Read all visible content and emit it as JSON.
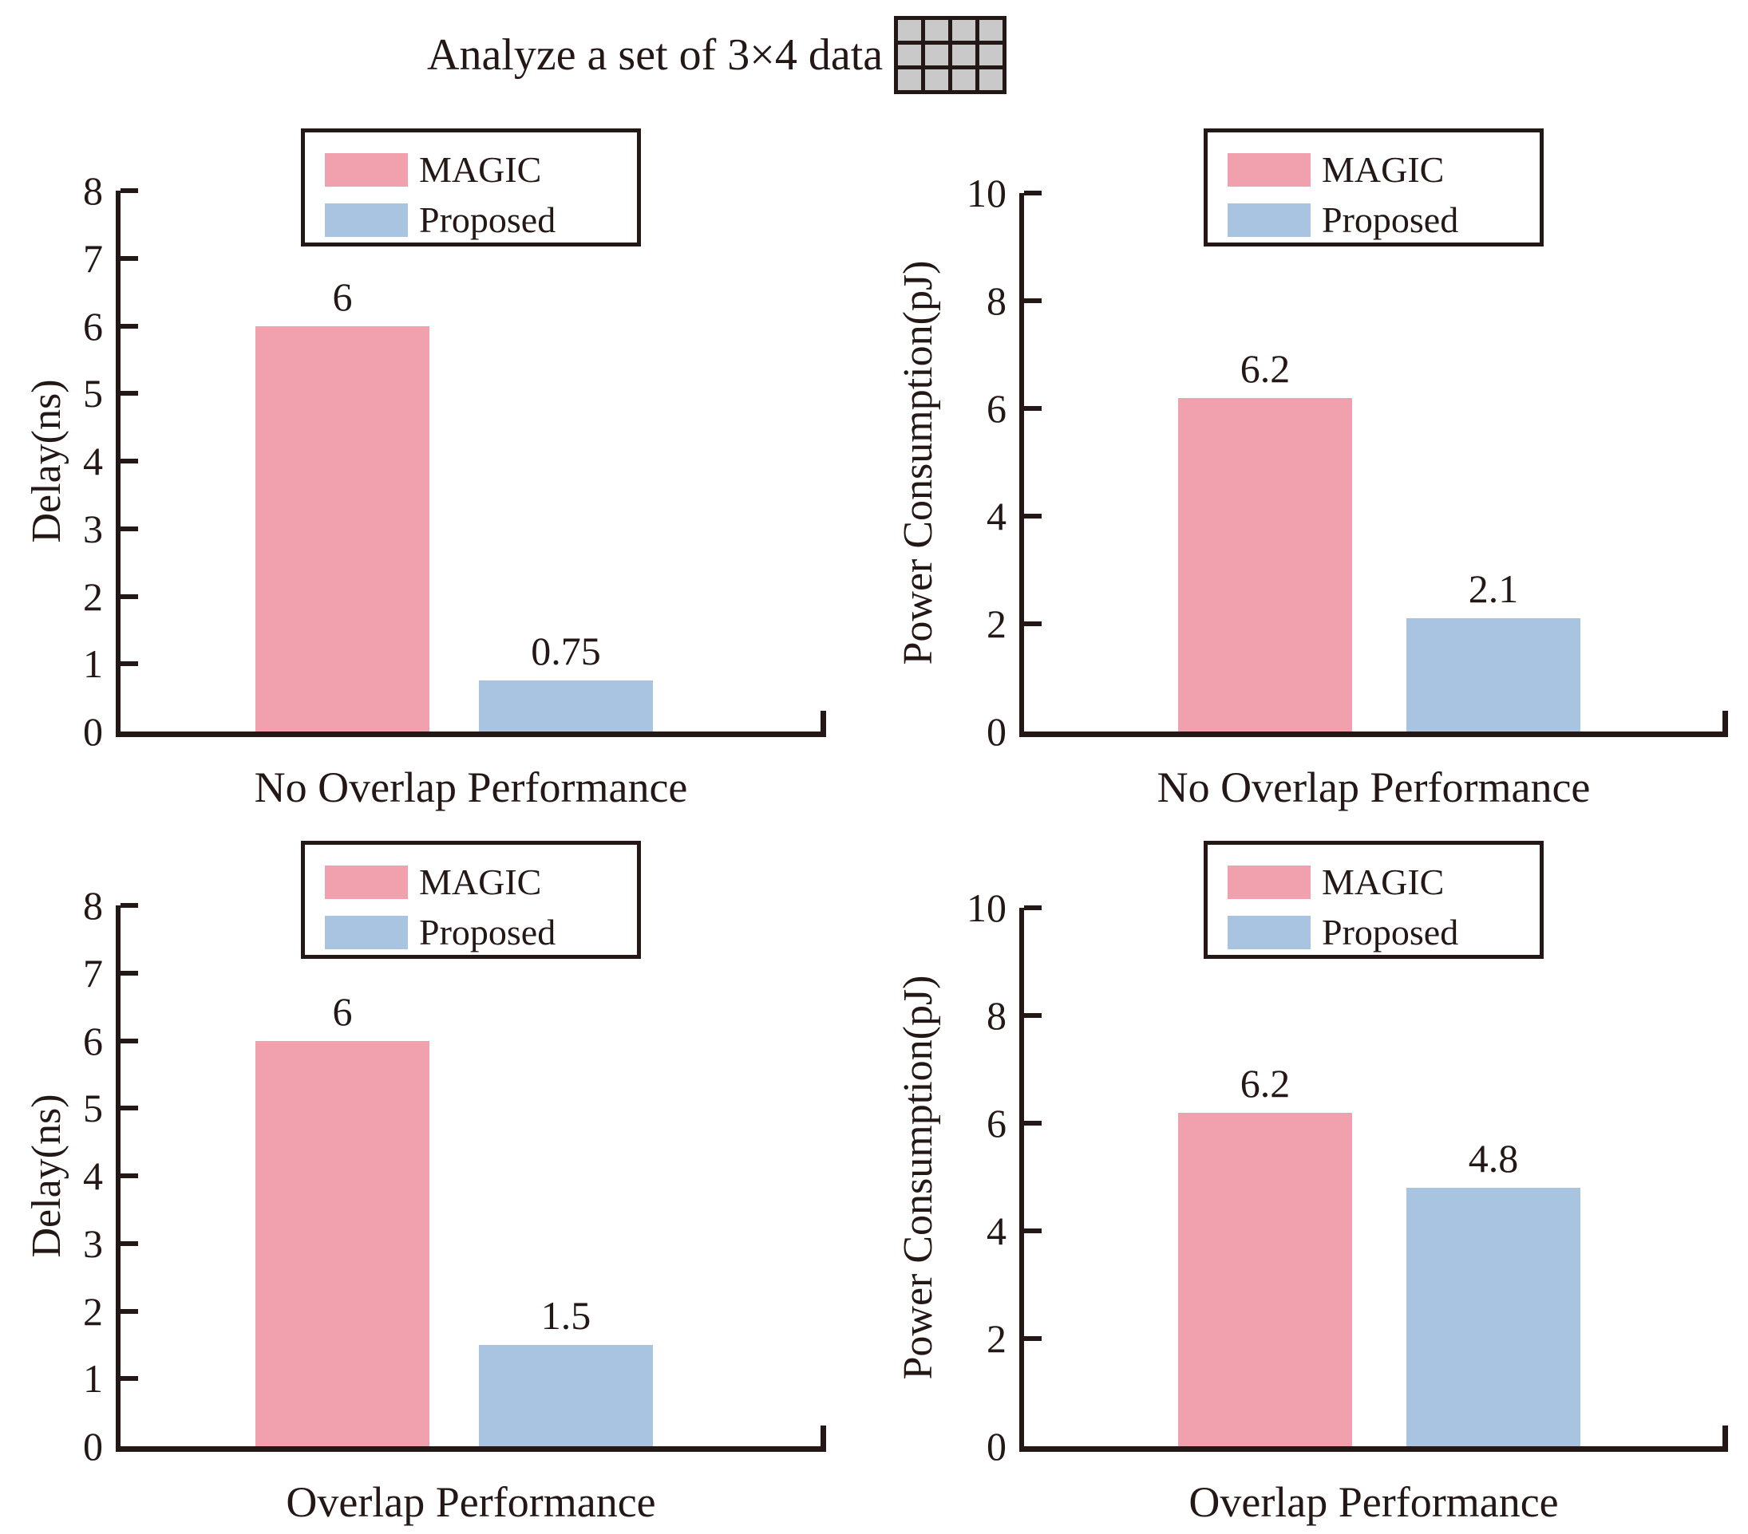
{
  "figure_title": {
    "text": "Analyze a set of 3×4 data",
    "grid_icon": {
      "rows": 3,
      "cols": 4
    }
  },
  "colors": {
    "magic": "#F0A1AD",
    "proposed": "#A9C4E1",
    "axis_text": "#231815",
    "grid_cell_fill": "#C9C9C9"
  },
  "chart_data": [
    {
      "type": "bar",
      "position": "top-left",
      "xlabel": "No Overlap Performance",
      "ylabel": "Delay(ns)",
      "ylim": [
        0,
        8
      ],
      "yticks": [
        0,
        1,
        2,
        3,
        4,
        5,
        6,
        7,
        8
      ],
      "categories": [
        "MAGIC",
        "Proposed"
      ],
      "values": [
        6,
        0.75
      ],
      "bar_labels": [
        "6",
        "0.75"
      ],
      "legend": [
        "MAGIC",
        "Proposed"
      ],
      "legend_position": "top-center",
      "grid": false
    },
    {
      "type": "bar",
      "position": "top-right",
      "xlabel": "No Overlap Performance",
      "ylabel": "Power Consumption(pJ)",
      "ylim": [
        0,
        10
      ],
      "yticks": [
        0,
        2,
        4,
        6,
        8,
        10
      ],
      "categories": [
        "MAGIC",
        "Proposed"
      ],
      "values": [
        6.2,
        2.1
      ],
      "bar_labels": [
        "6.2",
        "2.1"
      ],
      "legend": [
        "MAGIC",
        "Proposed"
      ],
      "legend_position": "top-center",
      "grid": false
    },
    {
      "type": "bar",
      "position": "bottom-left",
      "xlabel": "Overlap Performance",
      "ylabel": "Delay(ns)",
      "ylim": [
        0,
        8
      ],
      "yticks": [
        0,
        1,
        2,
        3,
        4,
        5,
        6,
        7,
        8
      ],
      "categories": [
        "MAGIC",
        "Proposed"
      ],
      "values": [
        6,
        1.5
      ],
      "bar_labels": [
        "6",
        "1.5"
      ],
      "legend": [
        "MAGIC",
        "Proposed"
      ],
      "legend_position": "top-center",
      "grid": false
    },
    {
      "type": "bar",
      "position": "bottom-right",
      "xlabel": "Overlap Performance",
      "ylabel": "Power Consumption(pJ)",
      "ylim": [
        0,
        10
      ],
      "yticks": [
        0,
        2,
        4,
        6,
        8,
        10
      ],
      "categories": [
        "MAGIC",
        "Proposed"
      ],
      "values": [
        6.2,
        4.8
      ],
      "bar_labels": [
        "6.2",
        "4.8"
      ],
      "legend": [
        "MAGIC",
        "Proposed"
      ],
      "legend_position": "top-center",
      "grid": false
    }
  ]
}
